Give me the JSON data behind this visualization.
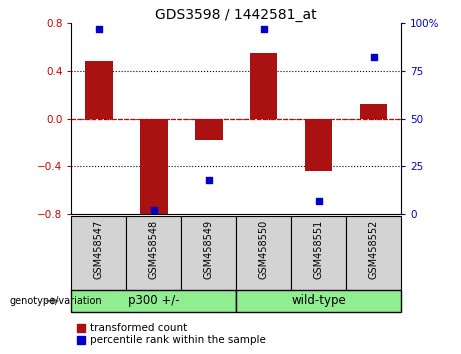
{
  "title": "GDS3598 / 1442581_at",
  "samples": [
    "GSM458547",
    "GSM458548",
    "GSM458549",
    "GSM458550",
    "GSM458551",
    "GSM458552"
  ],
  "bar_values": [
    0.48,
    -0.82,
    -0.18,
    0.55,
    -0.44,
    0.12
  ],
  "dot_values": [
    97,
    2,
    18,
    97,
    7,
    82
  ],
  "bar_color": "#AA1111",
  "dot_color": "#0000CC",
  "ylim_left": [
    -0.8,
    0.8
  ],
  "ylim_right": [
    0,
    100
  ],
  "yticks_left": [
    -0.8,
    -0.4,
    0.0,
    0.4,
    0.8
  ],
  "yticks_right": [
    0,
    25,
    50,
    75,
    100
  ],
  "group_label": "genotype/variation",
  "group1_label": "p300 +/-",
  "group2_label": "wild-type",
  "group_color": "#90EE90",
  "legend_bar_label": "transformed count",
  "legend_dot_label": "percentile rank within the sample",
  "zero_line_color": "#CC0000",
  "dot_line_color": "#000000",
  "tick_label_color_left": "#CC0000",
  "tick_label_color_right": "#0000CC",
  "sample_box_color": "#D3D3D3",
  "bar_width": 0.5,
  "title_fontsize": 10,
  "tick_fontsize": 7.5,
  "sample_fontsize": 7,
  "group_fontsize": 8.5,
  "legend_fontsize": 7.5
}
